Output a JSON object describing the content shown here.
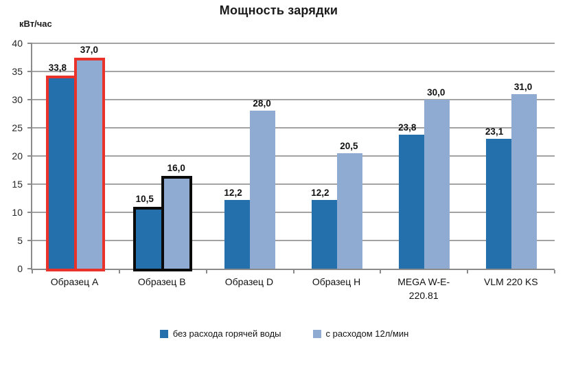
{
  "title": "Мощность зарядки",
  "ylabel": "кВт/час",
  "chart_data": {
    "type": "bar",
    "title": "Мощность зарядки",
    "xlabel": "",
    "ylabel": "кВт/час",
    "ylim": [
      0,
      40
    ],
    "ytick_step": 5,
    "grid": true,
    "legend_position": "bottom",
    "categories": [
      "Образец A",
      "Образец B",
      "Образец D",
      "Образец H",
      "MEGA W-E-220.81",
      "VLM 220 KS"
    ],
    "series": [
      {
        "name": "без расхода горячей воды",
        "color": "#2470AC",
        "values": [
          33.8,
          10.5,
          12.2,
          12.2,
          23.8,
          23.1
        ],
        "labels": [
          "33,8",
          "10,5",
          "12,2",
          "12,2",
          "23,8",
          "23,1"
        ]
      },
      {
        "name": "с расходом 12л/мин",
        "color": "#90ABD1",
        "values": [
          37.0,
          16.0,
          28.0,
          20.5,
          30.0,
          31.0
        ],
        "labels": [
          "37,0",
          "16,0",
          "28,0",
          "20,5",
          "30,0",
          "31,0"
        ]
      }
    ],
    "category_outlines": [
      "#E9332A",
      "#0a0a0a",
      null,
      null,
      null,
      null
    ],
    "colors": {
      "gridline": "#a3a3a3",
      "axis": "#8a8a8a",
      "text": "#111111"
    }
  }
}
